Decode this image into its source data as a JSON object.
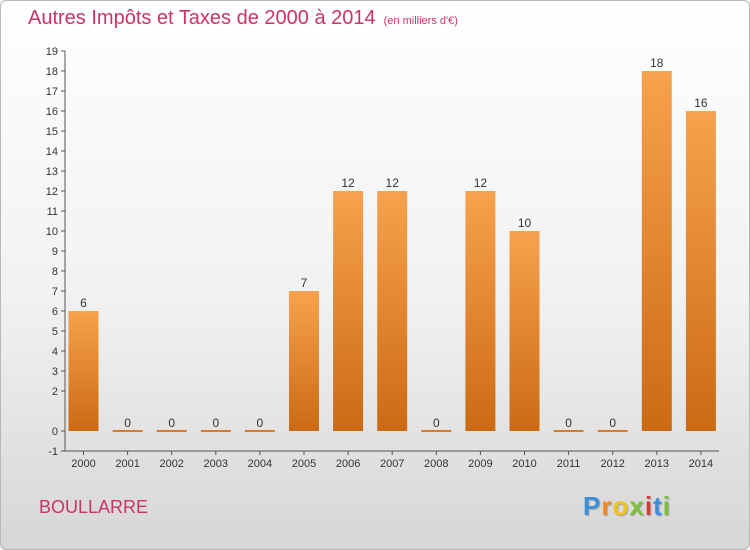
{
  "title": "Autres Impôts et Taxes de 2000 à 2014",
  "subtitle": "(en milliers d'€)",
  "place": "BOULLARRE",
  "logo": {
    "letters": [
      "P",
      "r",
      "o",
      "x",
      "i",
      "t",
      "i"
    ],
    "colors": [
      "#3a8fd8",
      "#f08a24",
      "#f0c419",
      "#7cbf3a",
      "#d93a3a",
      "#3a8fd8",
      "#7cbf3a"
    ]
  },
  "colors": {
    "bar_top": "#f7a24e",
    "bar_bottom": "#cc6a14",
    "title": "#cc3366"
  },
  "chart_data": {
    "type": "bar",
    "categories": [
      "2000",
      "2001",
      "2002",
      "2003",
      "2004",
      "2005",
      "2006",
      "2007",
      "2008",
      "2009",
      "2010",
      "2011",
      "2012",
      "2013",
      "2014"
    ],
    "values": [
      6,
      0,
      0,
      0,
      0,
      7,
      12,
      12,
      0,
      12,
      10,
      0,
      0,
      18,
      16
    ],
    "title": "Autres Impôts et Taxes de 2000 à 2014",
    "ylim": [
      -1,
      19
    ],
    "yticks": [
      -1,
      0,
      2,
      3,
      4,
      5,
      6,
      7,
      8,
      9,
      10,
      11,
      12,
      13,
      14,
      15,
      16,
      17,
      18,
      19
    ],
    "grid": false
  }
}
